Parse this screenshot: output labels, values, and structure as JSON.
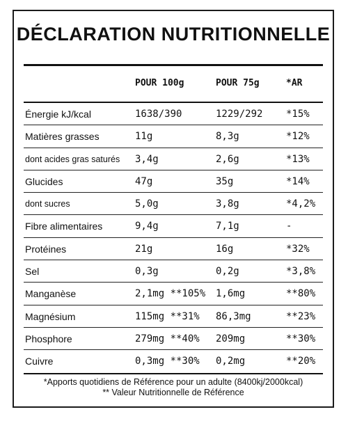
{
  "title": "DÉCLARATION NUTRITIONNELLE",
  "headers": {
    "col1": "POUR 100g",
    "col2": "POUR 75g",
    "col3": "*AR"
  },
  "rows": [
    {
      "name": "Énergie kJ/kcal",
      "v1": "1638/390",
      "v2": "1229/292",
      "v3": "*15%"
    },
    {
      "name": "Matières grasses",
      "v1": "11g",
      "v2": "8,3g",
      "v3": "*12%"
    },
    {
      "name": "dont acides gras saturés",
      "v1": "3,4g",
      "v2": "2,6g",
      "v3": "*13%"
    },
    {
      "name": "Glucides",
      "v1": "47g",
      "v2": "35g",
      "v3": "*14%"
    },
    {
      "name": "dont sucres",
      "v1": "5,0g",
      "v2": "3,8g",
      "v3": "*4,2%"
    },
    {
      "name": "Fibre alimentaires",
      "v1": "9,4g",
      "v2": "7,1g",
      "v3": "-"
    },
    {
      "name": "Protéines",
      "v1": "21g",
      "v2": "16g",
      "v3": "*32%"
    },
    {
      "name": "Sel",
      "v1": "0,3g",
      "v2": "0,2g",
      "v3": "*3,8%"
    },
    {
      "name": "Manganèse",
      "v1": "2,1mg **105%",
      "v2": "1,6mg",
      "v3": "**80%"
    },
    {
      "name": "Magnésium",
      "v1": "115mg **31%",
      "v2": "86,3mg",
      "v3": "**23%"
    },
    {
      "name": "Phosphore",
      "v1": "279mg **40%",
      "v2": "209mg",
      "v3": "**30%"
    },
    {
      "name": "Cuivre",
      "v1": "0,3mg **30%",
      "v2": "0,2mg",
      "v3": "**20%"
    }
  ],
  "footnotes": {
    "line1": "*Apports quotidiens de Référence pour un adulte (8400kj/2000kcal)",
    "line2": "** Valeur Nutritionnelle de Référence"
  }
}
